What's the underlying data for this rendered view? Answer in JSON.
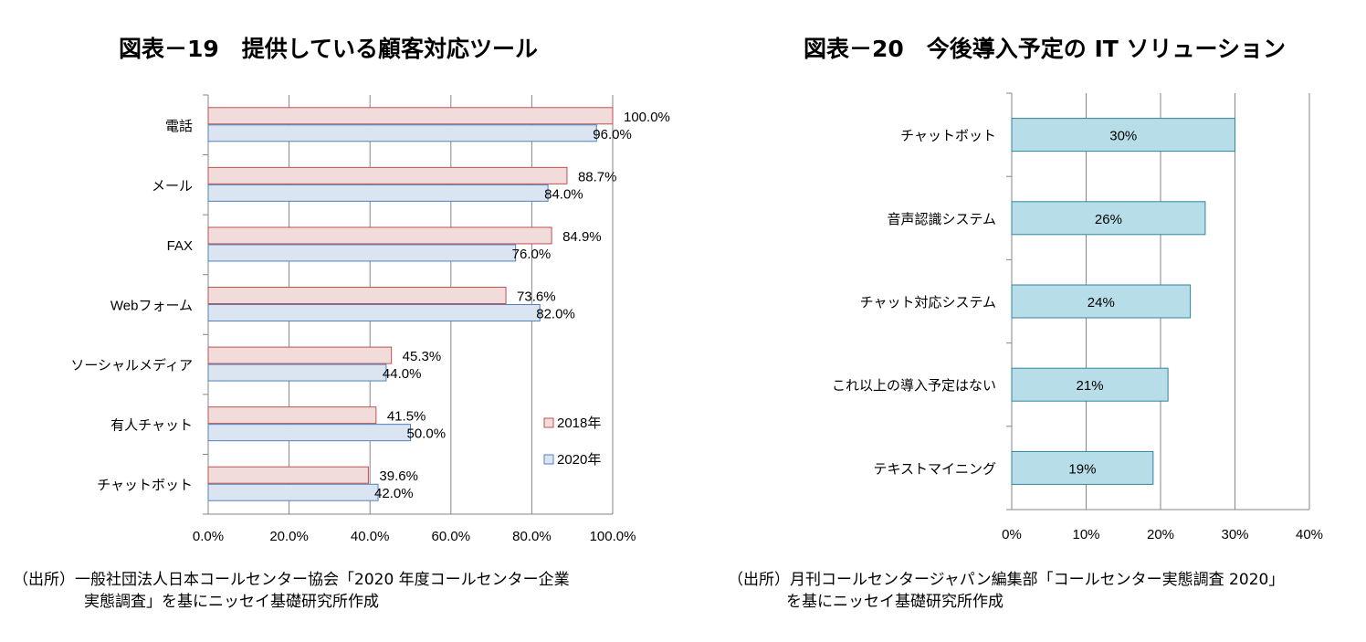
{
  "charts": {
    "left": {
      "title": "図表－19　提供している顧客対応ツール",
      "source_line1": "（出所）一般社団法人日本コールセンター協会「2020 年度コールセンター企業",
      "source_line2": "実態調査」を基にニッセイ基礎研究所作成"
    },
    "right": {
      "title": "図表－20　今後導入予定の IT ソリューション",
      "source_line1": "（出所）月刊コールセンタージャパン編集部「コールセンター実態調査 2020」",
      "source_line2": "を基にニッセイ基礎研究所作成"
    }
  },
  "colors": {
    "series_2018": "#f2dcdb",
    "series_2018_border": "#c0504d",
    "series_2020": "#dbe5f1",
    "series_2020_border": "#4f81bd",
    "bar_right": "#b7dee8",
    "bar_right_border": "#31859c",
    "grid": "#868686"
  },
  "chart_data": [
    {
      "type": "bar",
      "orientation": "horizontal",
      "title": "図表－19　提供している顧客対応ツール",
      "categories": [
        "電話",
        "メール",
        "FAX",
        "Webフォーム",
        "ソーシャルメディア",
        "有人チャット",
        "チャットボット"
      ],
      "series": [
        {
          "name": "2018年",
          "values": [
            100.0,
            88.7,
            84.9,
            73.6,
            45.3,
            41.5,
            39.6
          ]
        },
        {
          "name": "2020年",
          "values": [
            96.0,
            84.0,
            76.0,
            82.0,
            44.0,
            50.0,
            42.0
          ]
        }
      ],
      "xlim": [
        0,
        100
      ],
      "xticks": [
        "0.0%",
        "20.0%",
        "40.0%",
        "60.0%",
        "80.0%",
        "100.0%"
      ],
      "data_labels": [
        [
          "100.0%",
          "88.7%",
          "84.9%",
          "73.6%",
          "45.3%",
          "41.5%",
          "39.6%"
        ],
        [
          "96.0%",
          "84.0%",
          "76.0%",
          "82.0%",
          "44.0%",
          "50.0%",
          "42.0%"
        ]
      ],
      "grid": true,
      "legend": "bottom-right"
    },
    {
      "type": "bar",
      "orientation": "horizontal",
      "title": "図表－20　今後導入予定の IT ソリューション",
      "categories": [
        "チャットボット",
        "音声認識システム",
        "チャット対応システム",
        "これ以上の導入予定はない",
        "テキストマイニング"
      ],
      "values": [
        30,
        26,
        24,
        21,
        19
      ],
      "data_labels": [
        "30%",
        "26%",
        "24%",
        "21%",
        "19%"
      ],
      "xlim": [
        0,
        40
      ],
      "xticks": [
        "0%",
        "10%",
        "20%",
        "30%",
        "40%"
      ],
      "grid": true
    }
  ]
}
